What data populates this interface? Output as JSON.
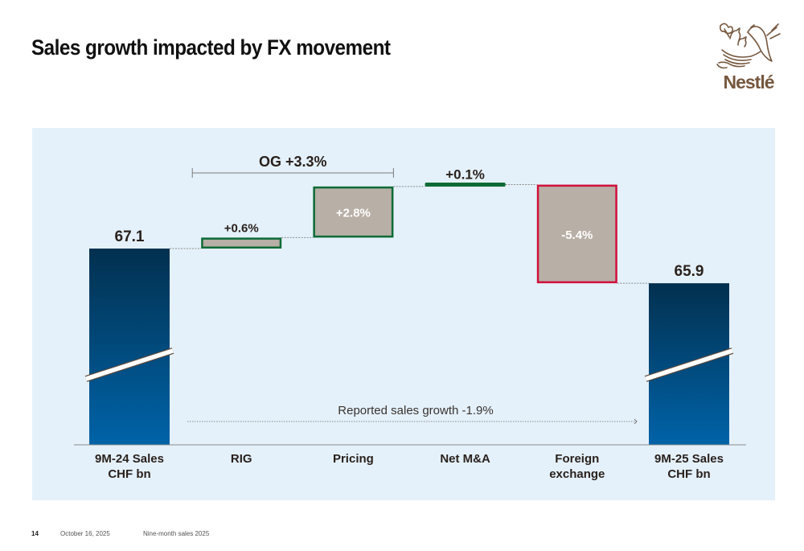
{
  "slide": {
    "title": "Sales growth impacted by FX movement",
    "brand": "Nestlé",
    "footer": {
      "page_number": "14",
      "date": "October 16, 2025",
      "deck_title": "Nine-month sales 2025"
    }
  },
  "colors": {
    "panel_bg": "#e4f1fa",
    "total_bar_top": "#02304f",
    "total_bar_bottom": "#0063a8",
    "delta_fill": "#b8afa6",
    "positive_border": "#0b6b35",
    "negative_border": "#d0103a",
    "brand_brown": "#76583f"
  },
  "chart_data": {
    "type": "bar",
    "subtype": "waterfall",
    "title": "Sales growth impacted by FX movement",
    "unit": "CHF bn / % growth",
    "categories": [
      "9M-24 Sales\nCHF bn",
      "RIG",
      "Pricing",
      "Net M&A",
      "Foreign\nexchange",
      "9M-25 Sales\nCHF bn"
    ],
    "steps": [
      {
        "category": "9M-24 Sales CHF bn",
        "kind": "total",
        "value": 67.1,
        "label": "67.1"
      },
      {
        "category": "RIG",
        "kind": "delta",
        "value": 0.6,
        "label": "+0.6%",
        "label_position": "above"
      },
      {
        "category": "Pricing",
        "kind": "delta",
        "value": 2.8,
        "label": "+2.8%",
        "label_position": "inside"
      },
      {
        "category": "Net M&A",
        "kind": "delta",
        "value": 0.1,
        "label": "+0.1%",
        "label_position": "above"
      },
      {
        "category": "Foreign exchange",
        "kind": "delta",
        "value": -5.4,
        "label": "-5.4%",
        "label_position": "inside"
      },
      {
        "category": "9M-25 Sales CHF bn",
        "kind": "total",
        "value": 65.9,
        "label": "65.9"
      }
    ],
    "annotations": [
      {
        "text": "OG +3.3%",
        "spans": [
          "RIG",
          "Pricing"
        ],
        "type": "bracket"
      },
      {
        "text": "Reported sales growth -1.9%",
        "from": "9M-24 Sales CHF bn",
        "to": "9M-25 Sales CHF bn",
        "type": "dotted-arrow"
      }
    ],
    "axis_break": true,
    "xlabel": "",
    "ylabel": "",
    "grid": false,
    "legend": "none"
  }
}
